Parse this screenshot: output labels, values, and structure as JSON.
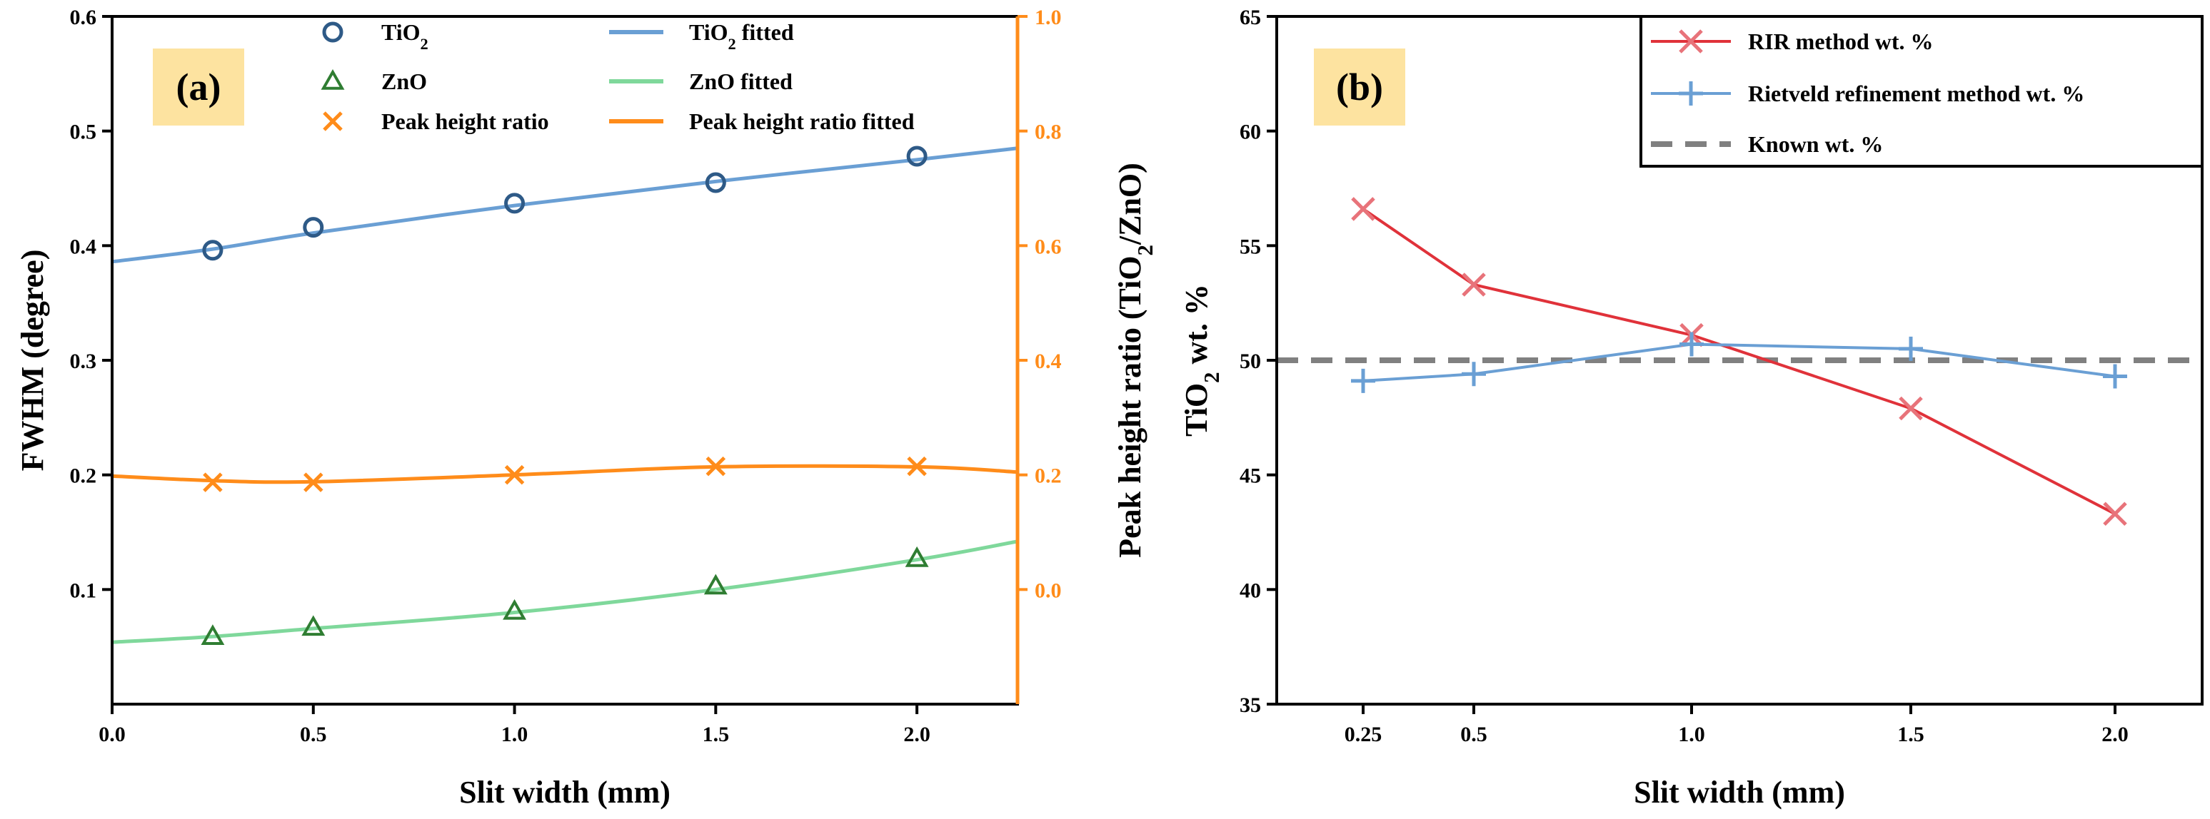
{
  "colors": {
    "tio2": "#2e5a87",
    "tio2_fit": "#6a9fd4",
    "zno": "#2f7d32",
    "zno_fit": "#7fd89b",
    "ratio": "#ff8c1a",
    "rir": "#e0323a",
    "rir_marker": "#e8737a",
    "rietveld": "#6a9fd4",
    "known": "#808080",
    "panel_label_bg": "#fde3a0"
  },
  "chart_data": [
    {
      "type": "line",
      "panel_label": "(a)",
      "xlabel": "Slit width (mm)",
      "ylabel": "FWHM (degree)",
      "ylabel_right": {
        "prefix": "Peak height ratio (TiO",
        "sub": "2",
        "suffix": "/ZnO)"
      },
      "xlim": [
        0,
        2.25
      ],
      "ylim": [
        0,
        0.6
      ],
      "ylim_right": [
        -0.2,
        1.0
      ],
      "xticks": [
        "0.0",
        "0.5",
        "1.0",
        "1.5",
        "2.0"
      ],
      "yticks": [
        "0.1",
        "0.2",
        "0.3",
        "0.4",
        "0.5",
        "0.6"
      ],
      "yticks_right": [
        "0.0",
        "0.2",
        "0.4",
        "0.6",
        "0.8",
        "1.0"
      ],
      "x": [
        0.25,
        0.5,
        1.0,
        1.5,
        2.0
      ],
      "series": [
        {
          "name": "TiO2",
          "values": [
            0.396,
            0.416,
            0.437,
            0.455,
            0.478
          ],
          "axis": "left",
          "marker": "circle"
        },
        {
          "name": "ZnO",
          "values": [
            0.059,
            0.067,
            0.081,
            0.103,
            0.127
          ],
          "axis": "left",
          "marker": "triangle"
        },
        {
          "name": "Peak height ratio",
          "values": [
            0.187,
            0.187,
            0.2,
            0.215,
            0.215
          ],
          "axis": "right",
          "marker": "x"
        }
      ],
      "fits": [
        {
          "name": "TiO2 fitted",
          "x": [
            0,
            0.25,
            0.5,
            1.0,
            1.5,
            2.0,
            2.25
          ],
          "values": [
            0.386,
            0.397,
            0.411,
            0.435,
            0.456,
            0.475,
            0.485
          ],
          "axis": "left"
        },
        {
          "name": "ZnO fitted",
          "x": [
            0,
            0.25,
            0.5,
            1.0,
            1.5,
            2.0,
            2.25
          ],
          "values": [
            0.054,
            0.059,
            0.066,
            0.08,
            0.1,
            0.126,
            0.142
          ],
          "axis": "left"
        },
        {
          "name": "Peak height ratio fitted",
          "x": [
            0,
            0.25,
            0.5,
            1.0,
            1.5,
            2.0,
            2.25
          ],
          "values": [
            0.198,
            0.19,
            0.188,
            0.2,
            0.214,
            0.214,
            0.205
          ],
          "axis": "right"
        }
      ],
      "legend": {
        "position": "top",
        "entries": [
          {
            "key": "tio2",
            "prefix": "TiO",
            "sub": "2",
            "suffix": ""
          },
          {
            "key": "zno",
            "prefix": "ZnO",
            "sub": "",
            "suffix": ""
          },
          {
            "key": "ratio",
            "prefix": "Peak height ratio",
            "sub": "",
            "suffix": ""
          },
          {
            "key": "tio2_fit",
            "prefix": "TiO",
            "sub": "2",
            "suffix": " fitted"
          },
          {
            "key": "zno_fit",
            "prefix": "ZnO fitted",
            "sub": "",
            "suffix": ""
          },
          {
            "key": "ratio_fit",
            "prefix": "Peak height ratio fitted",
            "sub": "",
            "suffix": ""
          }
        ]
      }
    },
    {
      "type": "line",
      "panel_label": "(b)",
      "xlabel": "Slit width (mm)",
      "ylabel": {
        "prefix": "TiO",
        "sub": "2",
        "suffix": " wt. %"
      },
      "ylim": [
        35,
        65
      ],
      "yticks": [
        "35",
        "40",
        "45",
        "50",
        "55",
        "60",
        "65"
      ],
      "categories": [
        "0.25",
        "0.5",
        "1.0",
        "1.5",
        "2.0"
      ],
      "series": [
        {
          "name": "RIR method wt. %",
          "values": [
            56.6,
            53.3,
            51.1,
            47.9,
            43.3
          ],
          "marker": "x"
        },
        {
          "name": "Rietveld refinement method wt. %",
          "values": [
            49.1,
            49.4,
            50.7,
            50.5,
            49.3
          ],
          "marker": "plus"
        }
      ],
      "reference": {
        "name": "Known wt. %",
        "value": 50
      },
      "legend": {
        "position": "top-right",
        "entries": [
          "RIR method wt. %",
          "Rietveld refinement method wt. %",
          "Known wt. %"
        ]
      }
    }
  ]
}
